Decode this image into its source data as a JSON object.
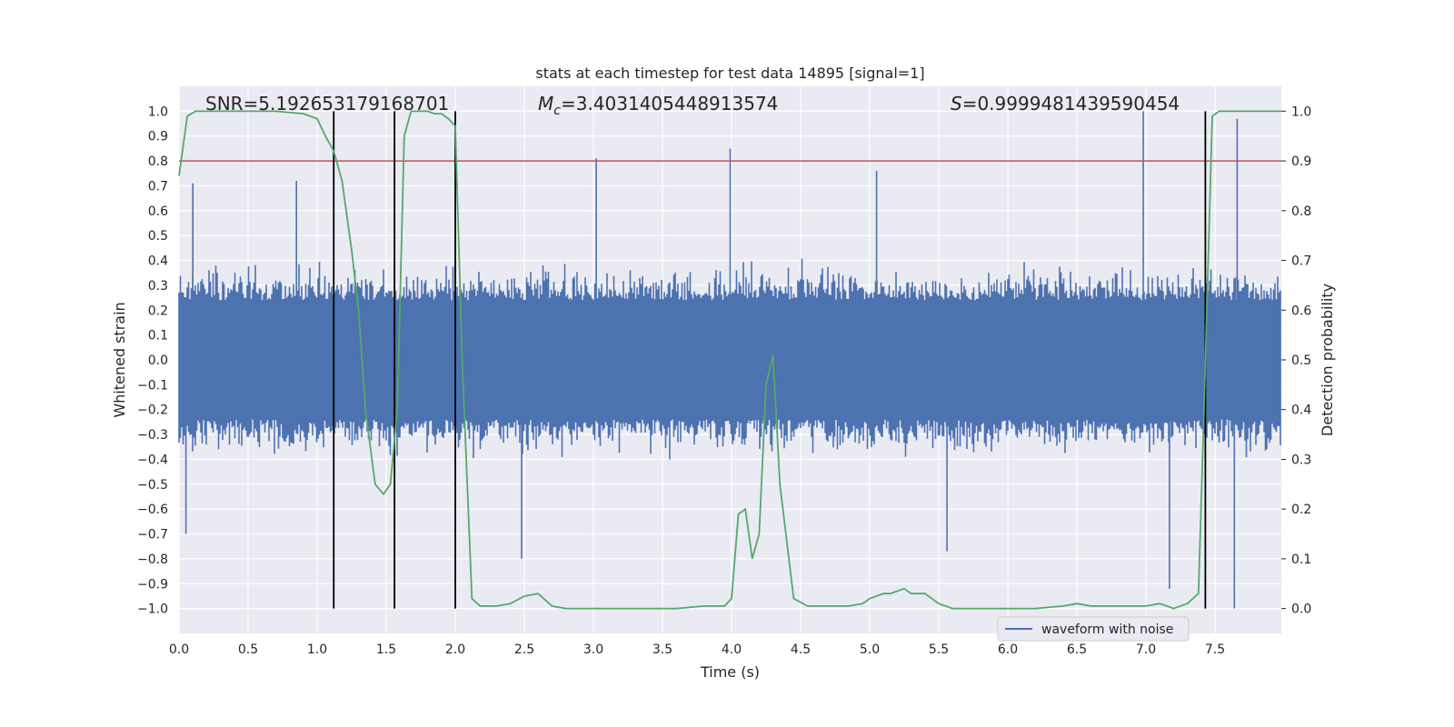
{
  "chart_data": {
    "type": "line",
    "title": "stats at each timestep for test data 14895 [signal=1]",
    "xlabel": "Time (s)",
    "ylabel": "Whitened strain",
    "y2label": "Detection probability",
    "xlim": [
      0,
      7.98
    ],
    "ylim": [
      -1.1,
      1.1
    ],
    "y2lim": [
      -0.05,
      1.05
    ],
    "x_ticks": [
      "0.0",
      "0.5",
      "1.0",
      "1.5",
      "2.0",
      "2.5",
      "3.0",
      "3.5",
      "4.0",
      "4.5",
      "5.0",
      "5.5",
      "6.0",
      "6.5",
      "7.0",
      "7.5"
    ],
    "y_ticks": [
      "−1.0",
      "−0.9",
      "−0.8",
      "−0.7",
      "−0.6",
      "−0.5",
      "−0.4",
      "−0.3",
      "−0.2",
      "−0.1",
      "0.0",
      "0.1",
      "0.2",
      "0.3",
      "0.4",
      "0.5",
      "0.6",
      "0.7",
      "0.8",
      "0.9",
      "1.0"
    ],
    "y2_ticks": [
      "0.0",
      "0.1",
      "0.2",
      "0.3",
      "0.4",
      "0.5",
      "0.6",
      "0.7",
      "0.8",
      "0.9",
      "1.0"
    ],
    "grid": true,
    "legend_position": "lower-right",
    "annotations": {
      "snr": "SNR=5.192653179168701",
      "mc_symbol": "M",
      "mc_sub": "c",
      "mc_value": "=3.4031405448913574",
      "s_symbol": "S",
      "s_value": "=0.9999481439590454"
    },
    "threshold_y2": 0.9,
    "vertical_lines_x": [
      1.12,
      1.56,
      2.0,
      7.43
    ],
    "series": [
      {
        "name": "waveform with noise",
        "axis": "left",
        "color": "#4c72b0",
        "description_envelope_peaks": [
          {
            "x": 0.1,
            "y": 0.71
          },
          {
            "x": 0.85,
            "y": 0.72
          },
          {
            "x": 2.0,
            "y": 0.67
          },
          {
            "x": 3.02,
            "y": 0.81
          },
          {
            "x": 3.99,
            "y": 0.85
          },
          {
            "x": 5.05,
            "y": 0.76
          },
          {
            "x": 6.98,
            "y": 1.0
          },
          {
            "x": 7.66,
            "y": 0.97
          },
          {
            "x": 0.05,
            "y": -0.7
          },
          {
            "x": 2.48,
            "y": -0.8
          },
          {
            "x": 5.56,
            "y": -0.77
          },
          {
            "x": 7.17,
            "y": -0.92
          },
          {
            "x": 7.64,
            "y": -1.0
          }
        ]
      },
      {
        "name": "detection probability",
        "axis": "right",
        "color": "#55a868",
        "x": [
          0.0,
          0.06,
          0.12,
          0.2,
          0.3,
          0.5,
          0.7,
          0.9,
          1.0,
          1.06,
          1.12,
          1.18,
          1.25,
          1.3,
          1.35,
          1.42,
          1.48,
          1.53,
          1.58,
          1.63,
          1.68,
          1.75,
          1.8,
          1.85,
          1.9,
          1.95,
          2.0,
          2.05,
          2.12,
          2.18,
          2.3,
          2.4,
          2.5,
          2.6,
          2.7,
          2.8,
          3.0,
          3.2,
          3.4,
          3.6,
          3.8,
          3.95,
          4.0,
          4.05,
          4.1,
          4.15,
          4.2,
          4.25,
          4.3,
          4.35,
          4.45,
          4.55,
          4.7,
          4.85,
          4.95,
          5.0,
          5.1,
          5.15,
          5.25,
          5.3,
          5.4,
          5.5,
          5.6,
          5.8,
          6.0,
          6.2,
          6.4,
          6.5,
          6.6,
          6.8,
          7.0,
          7.1,
          7.2,
          7.3,
          7.38,
          7.42,
          7.48,
          7.53,
          7.6,
          7.8,
          7.98
        ],
        "y": [
          0.87,
          0.99,
          1.0,
          1.0,
          1.0,
          1.0,
          1.0,
          0.995,
          0.985,
          0.95,
          0.92,
          0.86,
          0.72,
          0.6,
          0.4,
          0.25,
          0.23,
          0.25,
          0.4,
          0.95,
          1.0,
          1.0,
          1.0,
          0.995,
          0.995,
          0.985,
          0.97,
          0.5,
          0.02,
          0.005,
          0.005,
          0.01,
          0.025,
          0.03,
          0.005,
          0.0,
          0.0,
          0.0,
          0.0,
          0.0,
          0.005,
          0.005,
          0.02,
          0.19,
          0.2,
          0.1,
          0.15,
          0.45,
          0.51,
          0.25,
          0.02,
          0.005,
          0.005,
          0.005,
          0.01,
          0.02,
          0.03,
          0.03,
          0.04,
          0.03,
          0.03,
          0.01,
          0.0,
          0.0,
          0.0,
          0.0,
          0.005,
          0.01,
          0.005,
          0.005,
          0.005,
          0.01,
          0.0,
          0.01,
          0.03,
          0.4,
          0.99,
          1.0,
          1.0,
          1.0,
          1.0
        ]
      }
    ],
    "colors": {
      "plot_bg": "#eaeaf2",
      "grid": "#ffffff",
      "threshold": "#c44e52",
      "vline": "#000000"
    }
  }
}
